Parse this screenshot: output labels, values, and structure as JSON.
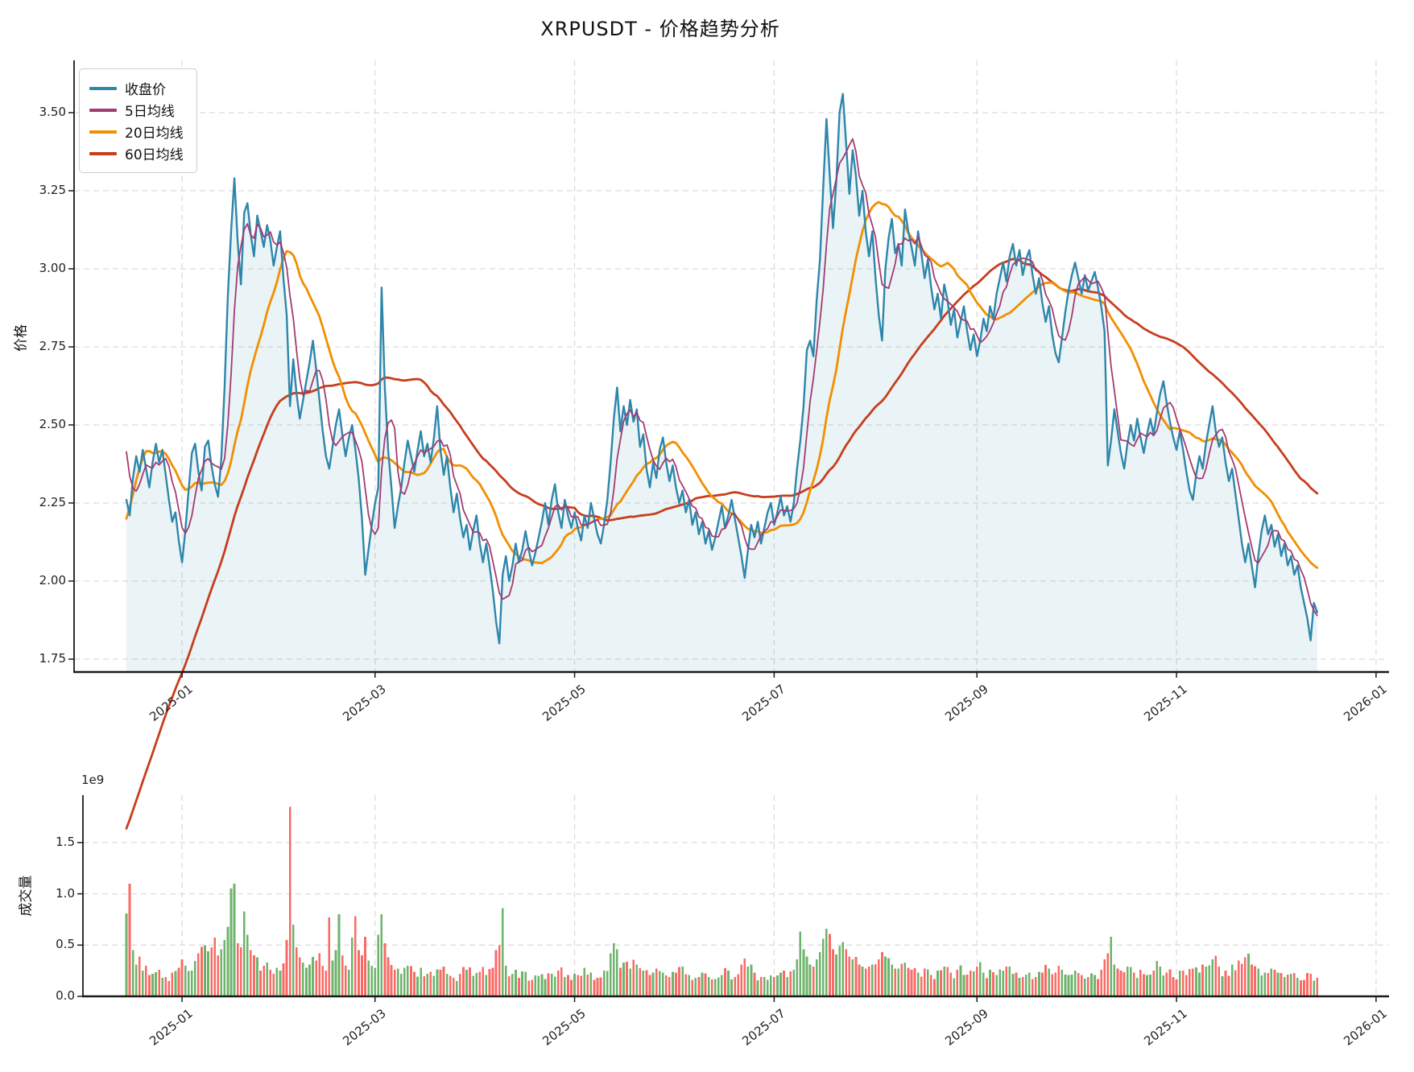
{
  "title": "XRPUSDT - 价格趋势分析",
  "price_chart": {
    "ylabel": "价格",
    "yticks": [
      "3.50",
      "3.25",
      "3.00",
      "2.75",
      "2.50",
      "2.25",
      "2.00",
      "1.75"
    ],
    "legend": [
      {
        "label": "收盘价",
        "color": "#2E86AB"
      },
      {
        "label": "5日均线",
        "color": "#A23B72"
      },
      {
        "label": "20日均线",
        "color": "#F18F01"
      },
      {
        "label": "60日均线",
        "color": "#C73E1D"
      }
    ]
  },
  "volume_chart": {
    "ylabel": "成交量",
    "offset_label": "1e9",
    "yticks": [
      "0.0",
      "0.5",
      "1.0",
      "1.5"
    ]
  },
  "chart_data": {
    "type": "line+bar",
    "symbol": "XRPUSDT",
    "start_date": "2024-12-15",
    "days": 365,
    "xticks": [
      {
        "label": "2025-01",
        "day": 17
      },
      {
        "label": "2025-03",
        "day": 76
      },
      {
        "label": "2025-05",
        "day": 137
      },
      {
        "label": "2025-07",
        "day": 198
      },
      {
        "label": "2025-09",
        "day": 260
      },
      {
        "label": "2025-11",
        "day": 321
      },
      {
        "label": "2026-01",
        "day": 382
      }
    ],
    "price": {
      "ylim": [
        1.71,
        3.67
      ],
      "ytick_values": [
        3.5,
        3.25,
        3.0,
        2.75,
        2.5,
        2.25,
        2.0,
        1.75
      ],
      "ma_windows": [
        5,
        20,
        60
      ],
      "close": [
        2.26,
        2.21,
        2.33,
        2.4,
        2.35,
        2.42,
        2.36,
        2.3,
        2.38,
        2.44,
        2.38,
        2.42,
        2.34,
        2.26,
        2.19,
        2.22,
        2.13,
        2.06,
        2.16,
        2.29,
        2.41,
        2.44,
        2.35,
        2.29,
        2.43,
        2.45,
        2.37,
        2.31,
        2.27,
        2.39,
        2.62,
        2.91,
        3.12,
        3.29,
        3.09,
        2.95,
        3.18,
        3.21,
        3.11,
        3.04,
        3.17,
        3.12,
        3.07,
        3.14,
        3.09,
        3.01,
        3.07,
        3.12,
        2.97,
        2.85,
        2.56,
        2.71,
        2.6,
        2.52,
        2.58,
        2.64,
        2.7,
        2.77,
        2.68,
        2.58,
        2.48,
        2.4,
        2.36,
        2.43,
        2.5,
        2.55,
        2.47,
        2.4,
        2.46,
        2.5,
        2.42,
        2.33,
        2.2,
        2.02,
        2.1,
        2.18,
        2.25,
        2.3,
        2.94,
        2.62,
        2.42,
        2.3,
        2.17,
        2.24,
        2.3,
        2.38,
        2.45,
        2.4,
        2.35,
        2.42,
        2.48,
        2.4,
        2.44,
        2.38,
        2.46,
        2.56,
        2.42,
        2.34,
        2.4,
        2.3,
        2.22,
        2.28,
        2.2,
        2.14,
        2.18,
        2.1,
        2.16,
        2.21,
        2.12,
        2.06,
        2.12,
        2.05,
        1.97,
        1.87,
        1.8,
        2.02,
        2.08,
        2.0,
        2.05,
        2.12,
        2.06,
        2.1,
        2.16,
        2.1,
        2.05,
        2.09,
        2.14,
        2.19,
        2.25,
        2.18,
        2.26,
        2.31,
        2.22,
        2.17,
        2.26,
        2.21,
        2.17,
        2.22,
        2.17,
        2.13,
        2.21,
        2.17,
        2.25,
        2.2,
        2.15,
        2.12,
        2.18,
        2.26,
        2.38,
        2.52,
        2.62,
        2.48,
        2.56,
        2.5,
        2.58,
        2.51,
        2.55,
        2.43,
        2.47,
        2.36,
        2.3,
        2.38,
        2.33,
        2.42,
        2.46,
        2.38,
        2.32,
        2.37,
        2.3,
        2.25,
        2.29,
        2.22,
        2.26,
        2.18,
        2.22,
        2.15,
        2.19,
        2.12,
        2.16,
        2.1,
        2.14,
        2.19,
        2.24,
        2.17,
        2.21,
        2.26,
        2.2,
        2.14,
        2.08,
        2.01,
        2.1,
        2.18,
        2.14,
        2.19,
        2.12,
        2.17,
        2.22,
        2.25,
        2.18,
        2.22,
        2.27,
        2.21,
        2.24,
        2.19,
        2.25,
        2.36,
        2.45,
        2.56,
        2.74,
        2.77,
        2.72,
        2.9,
        3.03,
        3.26,
        3.48,
        3.3,
        3.13,
        3.28,
        3.5,
        3.56,
        3.4,
        3.24,
        3.38,
        3.3,
        3.17,
        3.25,
        3.12,
        3.04,
        3.12,
        2.97,
        2.85,
        2.77,
        3.0,
        3.1,
        3.16,
        3.05,
        3.08,
        3.01,
        3.19,
        3.12,
        3.07,
        3.01,
        3.12,
        3.05,
        2.97,
        3.03,
        2.94,
        2.87,
        2.92,
        2.84,
        2.95,
        2.9,
        2.82,
        2.87,
        2.78,
        2.83,
        2.88,
        2.8,
        2.74,
        2.79,
        2.72,
        2.77,
        2.84,
        2.8,
        2.88,
        2.84,
        2.92,
        2.97,
        3.02,
        2.96,
        3.04,
        3.08,
        3.01,
        3.06,
        2.98,
        3.03,
        3.06,
        2.98,
        2.92,
        2.97,
        2.89,
        2.83,
        2.88,
        2.79,
        2.73,
        2.7,
        2.78,
        2.86,
        2.93,
        2.98,
        3.02,
        2.97,
        2.92,
        2.98,
        2.93,
        2.96,
        2.99,
        2.94,
        2.88,
        2.8,
        2.37,
        2.45,
        2.55,
        2.48,
        2.41,
        2.36,
        2.44,
        2.5,
        2.45,
        2.52,
        2.46,
        2.41,
        2.47,
        2.52,
        2.47,
        2.54,
        2.6,
        2.64,
        2.57,
        2.51,
        2.46,
        2.42,
        2.48,
        2.42,
        2.35,
        2.29,
        2.26,
        2.34,
        2.4,
        2.36,
        2.44,
        2.5,
        2.56,
        2.48,
        2.43,
        2.46,
        2.38,
        2.32,
        2.36,
        2.28,
        2.2,
        2.12,
        2.06,
        2.12,
        2.05,
        1.98,
        2.08,
        2.16,
        2.21,
        2.15,
        2.18,
        2.11,
        2.15,
        2.08,
        2.12,
        2.05,
        2.08,
        2.02,
        2.05,
        1.98,
        1.93,
        1.88,
        1.81,
        1.93,
        1.9
      ],
      "pre_history_close": [
        0.52,
        0.53,
        0.52,
        0.54,
        0.53,
        0.55,
        0.54,
        0.53,
        0.55,
        0.56,
        0.55,
        0.54,
        0.56,
        0.55,
        0.57,
        0.56,
        0.55,
        0.56,
        0.58,
        0.57,
        0.56,
        0.58,
        0.56,
        0.57,
        0.55,
        0.56,
        0.58,
        0.57,
        0.56,
        0.58,
        0.62,
        0.72,
        0.85,
        1.0,
        1.1,
        1.22,
        1.38,
        1.3,
        1.42,
        1.4,
        1.35,
        1.45,
        1.55,
        1.48,
        1.58,
        1.75,
        1.95,
        2.28,
        2.52,
        2.42,
        2.3,
        2.4,
        2.5,
        2.58,
        2.62,
        2.55,
        2.6,
        2.52,
        2.45,
        2.24
      ]
    },
    "volume": {
      "unit_multiplier": 1000000000,
      "ylim": [
        0,
        1.96
      ],
      "ytick_values": [
        0.0,
        0.5,
        1.0,
        1.5
      ],
      "anchors": [
        [
          0,
          0.81
        ],
        [
          1,
          1.1
        ],
        [
          2,
          0.45
        ],
        [
          3,
          0.31
        ],
        [
          4,
          0.39
        ],
        [
          5,
          0.25
        ],
        [
          6,
          0.3
        ],
        [
          8,
          0.22
        ],
        [
          10,
          0.26
        ],
        [
          12,
          0.19
        ],
        [
          14,
          0.23
        ],
        [
          16,
          0.28
        ],
        [
          17,
          0.36
        ],
        [
          18,
          0.3
        ],
        [
          20,
          0.25
        ],
        [
          22,
          0.42
        ],
        [
          24,
          0.5
        ],
        [
          25,
          0.44
        ],
        [
          26,
          0.48
        ],
        [
          28,
          0.4
        ],
        [
          29,
          0.46
        ],
        [
          30,
          0.55
        ],
        [
          31,
          0.68
        ],
        [
          32,
          1.05
        ],
        [
          33,
          1.1
        ],
        [
          34,
          0.52
        ],
        [
          35,
          0.48
        ],
        [
          36,
          0.83
        ],
        [
          37,
          0.6
        ],
        [
          38,
          0.45
        ],
        [
          39,
          0.4
        ],
        [
          40,
          0.38
        ],
        [
          42,
          0.3
        ],
        [
          44,
          0.26
        ],
        [
          45,
          0.22
        ],
        [
          46,
          0.28
        ],
        [
          47,
          0.25
        ],
        [
          48,
          0.32
        ],
        [
          49,
          0.55
        ],
        [
          50,
          1.85
        ],
        [
          51,
          0.7
        ],
        [
          52,
          0.48
        ],
        [
          53,
          0.38
        ],
        [
          54,
          0.33
        ],
        [
          55,
          0.28
        ],
        [
          56,
          0.31
        ],
        [
          58,
          0.35
        ],
        [
          59,
          0.42
        ],
        [
          60,
          0.3
        ],
        [
          61,
          0.25
        ],
        [
          62,
          0.77
        ],
        [
          63,
          0.35
        ],
        [
          64,
          0.45
        ],
        [
          65,
          0.8
        ],
        [
          66,
          0.4
        ],
        [
          67,
          0.3
        ],
        [
          68,
          0.26
        ],
        [
          70,
          0.78
        ],
        [
          71,
          0.45
        ],
        [
          72,
          0.4
        ],
        [
          73,
          0.58
        ],
        [
          74,
          0.35
        ],
        [
          75,
          0.3
        ],
        [
          76,
          0.28
        ],
        [
          78,
          0.8
        ],
        [
          79,
          0.52
        ],
        [
          80,
          0.38
        ],
        [
          82,
          0.26
        ],
        [
          84,
          0.22
        ],
        [
          86,
          0.3
        ],
        [
          88,
          0.24
        ],
        [
          90,
          0.28
        ],
        [
          92,
          0.22
        ],
        [
          94,
          0.2
        ],
        [
          96,
          0.26
        ],
        [
          98,
          0.22
        ],
        [
          100,
          0.18
        ],
        [
          102,
          0.22
        ],
        [
          104,
          0.26
        ],
        [
          106,
          0.2
        ],
        [
          108,
          0.24
        ],
        [
          110,
          0.21
        ],
        [
          112,
          0.28
        ],
        [
          113,
          0.45
        ],
        [
          114,
          0.5
        ],
        [
          115,
          0.86
        ],
        [
          116,
          0.3
        ],
        [
          118,
          0.22
        ],
        [
          120,
          0.18
        ],
        [
          122,
          0.24
        ],
        [
          124,
          0.16
        ],
        [
          126,
          0.2
        ],
        [
          128,
          0.17
        ],
        [
          130,
          0.22
        ],
        [
          132,
          0.25
        ],
        [
          134,
          0.19
        ],
        [
          136,
          0.16
        ],
        [
          138,
          0.21
        ],
        [
          140,
          0.28
        ],
        [
          142,
          0.23
        ],
        [
          144,
          0.18
        ],
        [
          146,
          0.25
        ],
        [
          148,
          0.42
        ],
        [
          149,
          0.52
        ],
        [
          150,
          0.46
        ],
        [
          152,
          0.33
        ],
        [
          154,
          0.27
        ],
        [
          156,
          0.31
        ],
        [
          158,
          0.25
        ],
        [
          160,
          0.21
        ],
        [
          162,
          0.27
        ],
        [
          164,
          0.23
        ],
        [
          166,
          0.19
        ],
        [
          168,
          0.23
        ],
        [
          170,
          0.29
        ],
        [
          172,
          0.21
        ],
        [
          174,
          0.18
        ],
        [
          176,
          0.23
        ],
        [
          178,
          0.19
        ],
        [
          180,
          0.17
        ],
        [
          182,
          0.21
        ],
        [
          184,
          0.25
        ],
        [
          186,
          0.19
        ],
        [
          188,
          0.31
        ],
        [
          189,
          0.37
        ],
        [
          190,
          0.29
        ],
        [
          192,
          0.23
        ],
        [
          194,
          0.19
        ],
        [
          196,
          0.16
        ],
        [
          198,
          0.19
        ],
        [
          200,
          0.23
        ],
        [
          202,
          0.19
        ],
        [
          204,
          0.26
        ],
        [
          205,
          0.36
        ],
        [
          206,
          0.63
        ],
        [
          207,
          0.46
        ],
        [
          208,
          0.39
        ],
        [
          209,
          0.31
        ],
        [
          210,
          0.29
        ],
        [
          211,
          0.36
        ],
        [
          212,
          0.43
        ],
        [
          213,
          0.56
        ],
        [
          214,
          0.66
        ],
        [
          215,
          0.61
        ],
        [
          216,
          0.46
        ],
        [
          217,
          0.41
        ],
        [
          218,
          0.49
        ],
        [
          219,
          0.53
        ],
        [
          220,
          0.46
        ],
        [
          221,
          0.39
        ],
        [
          222,
          0.36
        ],
        [
          224,
          0.31
        ],
        [
          226,
          0.27
        ],
        [
          228,
          0.31
        ],
        [
          230,
          0.36
        ],
        [
          231,
          0.43
        ],
        [
          232,
          0.39
        ],
        [
          234,
          0.31
        ],
        [
          236,
          0.27
        ],
        [
          238,
          0.33
        ],
        [
          240,
          0.26
        ],
        [
          242,
          0.23
        ],
        [
          244,
          0.27
        ],
        [
          246,
          0.21
        ],
        [
          248,
          0.25
        ],
        [
          250,
          0.29
        ],
        [
          252,
          0.23
        ],
        [
          254,
          0.26
        ],
        [
          256,
          0.21
        ],
        [
          258,
          0.25
        ],
        [
          260,
          0.29
        ],
        [
          262,
          0.23
        ],
        [
          264,
          0.26
        ],
        [
          266,
          0.21
        ],
        [
          268,
          0.25
        ],
        [
          270,
          0.29
        ],
        [
          272,
          0.23
        ],
        [
          274,
          0.19
        ],
        [
          276,
          0.23
        ],
        [
          278,
          0.19
        ],
        [
          280,
          0.23
        ],
        [
          282,
          0.27
        ],
        [
          284,
          0.23
        ],
        [
          286,
          0.26
        ],
        [
          288,
          0.21
        ],
        [
          290,
          0.25
        ],
        [
          292,
          0.21
        ],
        [
          294,
          0.19
        ],
        [
          296,
          0.21
        ],
        [
          298,
          0.26
        ],
        [
          299,
          0.36
        ],
        [
          300,
          0.42
        ],
        [
          301,
          0.58
        ],
        [
          302,
          0.31
        ],
        [
          304,
          0.25
        ],
        [
          306,
          0.29
        ],
        [
          308,
          0.23
        ],
        [
          310,
          0.26
        ],
        [
          312,
          0.21
        ],
        [
          314,
          0.25
        ],
        [
          316,
          0.29
        ],
        [
          318,
          0.23
        ],
        [
          320,
          0.19
        ],
        [
          322,
          0.25
        ],
        [
          324,
          0.21
        ],
        [
          326,
          0.27
        ],
        [
          328,
          0.23
        ],
        [
          330,
          0.29
        ],
        [
          332,
          0.36
        ],
        [
          334,
          0.29
        ],
        [
          336,
          0.25
        ],
        [
          338,
          0.31
        ],
        [
          340,
          0.35
        ],
        [
          342,
          0.38
        ],
        [
          344,
          0.31
        ],
        [
          346,
          0.27
        ],
        [
          348,
          0.23
        ],
        [
          350,
          0.27
        ],
        [
          352,
          0.23
        ],
        [
          354,
          0.19
        ],
        [
          356,
          0.22
        ],
        [
          358,
          0.18
        ],
        [
          360,
          0.16
        ],
        [
          362,
          0.22
        ],
        [
          364,
          0.18
        ]
      ]
    },
    "colors": {
      "close": "#2E86AB",
      "ma5": "#A23B72",
      "ma20": "#F18F01",
      "ma60": "#C73E1D",
      "area_fill": "rgba(46,134,171,0.10)",
      "volume_up": "#6db36b",
      "volume_down": "#fa6a64",
      "grid": "#dcdcdc",
      "spine": "#1a1a1a"
    }
  }
}
